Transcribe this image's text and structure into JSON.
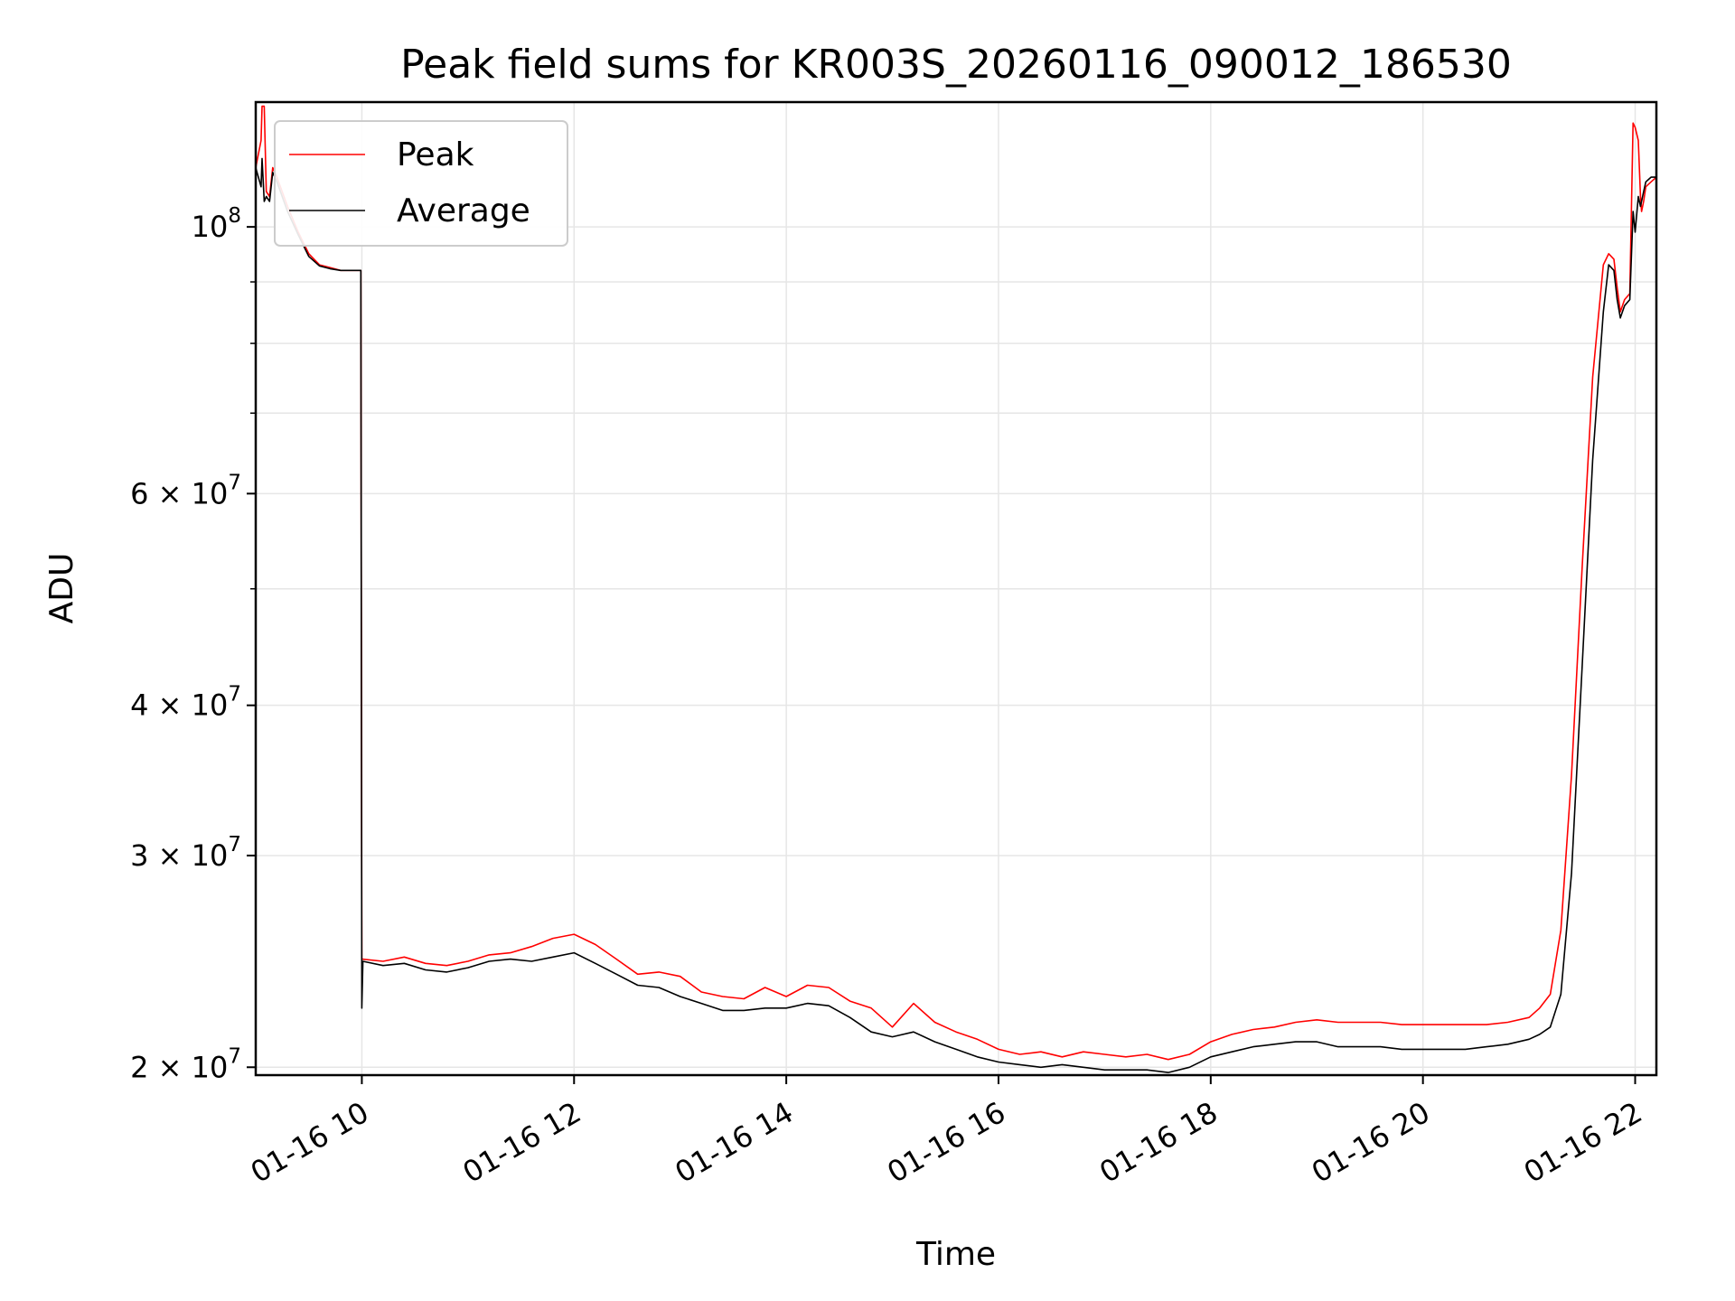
{
  "chart_data": {
    "type": "line",
    "title": "Peak field sums for KR003S_20260116_090012_186530",
    "xlabel": "Time",
    "ylabel": "ADU",
    "yscale": "log",
    "grid": true,
    "legend_location": "upper-left",
    "xlim_hours": [
      9.0,
      22.2
    ],
    "ylim": [
      19700000,
      127000000
    ],
    "x_ticks": [
      {
        "hour": 10,
        "label": "01-16 10"
      },
      {
        "hour": 12,
        "label": "01-16 12"
      },
      {
        "hour": 14,
        "label": "01-16 14"
      },
      {
        "hour": 16,
        "label": "01-16 16"
      },
      {
        "hour": 18,
        "label": "01-16 18"
      },
      {
        "hour": 20,
        "label": "01-16 20"
      },
      {
        "hour": 22,
        "label": "01-16 22"
      }
    ],
    "y_ticks": [
      {
        "value": 20000000,
        "mantissa": "2 × 10",
        "exponent": "7"
      },
      {
        "value": 30000000,
        "mantissa": "3 × 10",
        "exponent": "7"
      },
      {
        "value": 40000000,
        "mantissa": "4 × 10",
        "exponent": "7"
      },
      {
        "value": 60000000,
        "mantissa": "6 × 10",
        "exponent": "7"
      },
      {
        "value": 100000000,
        "mantissa": "10",
        "exponent": "8"
      }
    ],
    "y_minor_ticks": [
      50000000,
      70000000,
      80000000,
      90000000
    ],
    "series": [
      {
        "name": "Peak",
        "color": "#ff0000",
        "x_hours": [
          9.0,
          9.05,
          9.06,
          9.08,
          9.1,
          9.13,
          9.16,
          9.2,
          9.3,
          9.4,
          9.5,
          9.6,
          9.7,
          9.8,
          9.9,
          9.99,
          10.0,
          10.2,
          10.4,
          10.6,
          10.8,
          11.0,
          11.2,
          11.4,
          11.6,
          11.8,
          12.0,
          12.2,
          12.4,
          12.6,
          12.8,
          13.0,
          13.2,
          13.4,
          13.6,
          13.8,
          14.0,
          14.2,
          14.4,
          14.6,
          14.8,
          15.0,
          15.2,
          15.4,
          15.6,
          15.8,
          16.0,
          16.2,
          16.4,
          16.6,
          16.8,
          17.0,
          17.2,
          17.4,
          17.6,
          17.8,
          18.0,
          18.2,
          18.4,
          18.6,
          18.8,
          19.0,
          19.2,
          19.4,
          19.6,
          19.8,
          20.0,
          20.2,
          20.4,
          20.6,
          20.8,
          21.0,
          21.1,
          21.2,
          21.3,
          21.4,
          21.5,
          21.6,
          21.7,
          21.75,
          21.8,
          21.83,
          21.86,
          21.9,
          21.95,
          21.98,
          22.0,
          22.03,
          22.05,
          22.06,
          22.08,
          22.1,
          22.15,
          22.2
        ],
        "values": [
          112000000,
          118000000,
          126000000,
          126000000,
          107000000,
          106000000,
          112000000,
          110000000,
          104000000,
          99000000,
          95000000,
          93000000,
          92500000,
          92000000,
          92000000,
          92000000,
          24600000,
          24500000,
          24700000,
          24400000,
          24300000,
          24500000,
          24800000,
          24900000,
          25200000,
          25600000,
          25800000,
          25300000,
          24600000,
          23900000,
          24000000,
          23800000,
          23100000,
          22900000,
          22800000,
          23300000,
          22900000,
          23400000,
          23300000,
          22700000,
          22400000,
          21600000,
          22600000,
          21800000,
          21400000,
          21100000,
          20700000,
          20500000,
          20600000,
          20400000,
          20600000,
          20500000,
          20400000,
          20500000,
          20300000,
          20500000,
          21000000,
          21300000,
          21500000,
          21600000,
          21800000,
          21900000,
          21800000,
          21800000,
          21800000,
          21700000,
          21700000,
          21700000,
          21700000,
          21700000,
          21800000,
          22000000,
          22400000,
          23000000,
          26000000,
          35000000,
          52000000,
          75000000,
          93000000,
          95000000,
          94000000,
          89000000,
          85000000,
          87000000,
          88000000,
          122000000,
          121000000,
          118000000,
          106000000,
          103000000,
          105000000,
          108000000,
          109000000,
          110000000
        ]
      },
      {
        "name": "Average",
        "color": "#000000",
        "x_hours": [
          9.0,
          9.05,
          9.06,
          9.08,
          9.1,
          9.13,
          9.16,
          9.2,
          9.3,
          9.4,
          9.5,
          9.6,
          9.7,
          9.8,
          9.9,
          9.99,
          10.0,
          10.01,
          10.2,
          10.4,
          10.6,
          10.8,
          11.0,
          11.2,
          11.4,
          11.6,
          11.8,
          12.0,
          12.2,
          12.4,
          12.6,
          12.8,
          13.0,
          13.2,
          13.4,
          13.6,
          13.8,
          14.0,
          14.2,
          14.4,
          14.6,
          14.8,
          15.0,
          15.2,
          15.4,
          15.6,
          15.8,
          16.0,
          16.2,
          16.4,
          16.6,
          16.8,
          17.0,
          17.2,
          17.4,
          17.6,
          17.8,
          18.0,
          18.2,
          18.4,
          18.6,
          18.8,
          19.0,
          19.2,
          19.4,
          19.6,
          19.8,
          20.0,
          20.2,
          20.4,
          20.6,
          20.8,
          21.0,
          21.1,
          21.2,
          21.3,
          21.4,
          21.5,
          21.6,
          21.7,
          21.75,
          21.8,
          21.83,
          21.86,
          21.9,
          21.95,
          21.98,
          22.0,
          22.03,
          22.05,
          22.06,
          22.08,
          22.1,
          22.15,
          22.2
        ],
        "values": [
          112000000,
          108000000,
          114000000,
          105000000,
          106000000,
          105000000,
          111000000,
          109000000,
          103000000,
          98500000,
          94500000,
          92800000,
          92300000,
          92000000,
          92000000,
          92000000,
          22400000,
          24500000,
          24300000,
          24400000,
          24100000,
          24000000,
          24200000,
          24500000,
          24600000,
          24500000,
          24700000,
          24900000,
          24400000,
          23900000,
          23400000,
          23300000,
          22900000,
          22600000,
          22300000,
          22300000,
          22400000,
          22400000,
          22600000,
          22500000,
          22000000,
          21400000,
          21200000,
          21400000,
          21000000,
          20700000,
          20400000,
          20200000,
          20100000,
          20000000,
          20100000,
          20000000,
          19900000,
          19900000,
          19900000,
          19800000,
          20000000,
          20400000,
          20600000,
          20800000,
          20900000,
          21000000,
          21000000,
          20800000,
          20800000,
          20800000,
          20700000,
          20700000,
          20700000,
          20700000,
          20800000,
          20900000,
          21100000,
          21300000,
          21600000,
          23000000,
          29000000,
          43000000,
          64000000,
          85000000,
          93000000,
          92000000,
          87000000,
          84000000,
          86000000,
          87000000,
          103000000,
          99000000,
          106000000,
          104000000,
          105000000,
          107000000,
          109000000,
          110000000,
          110000000
        ]
      }
    ]
  }
}
